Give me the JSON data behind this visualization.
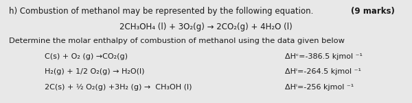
{
  "bg_color": "#e8e8e8",
  "text_color": "#1a1a1a",
  "title_line": "h) Combustion of methanol may be represented by the following equation.",
  "marks": "(9 marks)",
  "equation_main": "2CH₃OH₄ (l) + 3O₂(g) → 2CO₂(g) + 4H₂O (l)",
  "determine_line": "Determine the molar enthalpy of combustion of methanol using the data given below",
  "eq1_left": "C(s) + O₂ (g) →CO₂(g)",
  "eq1_right": "ΔHᶜ=-386.5 kjmol ⁻¹",
  "eq2_left": "H₂(g) + 1/2 O₂(g) → H₂O(l)",
  "eq2_right": "ΔHⁱ=-264.5 kjmol ⁻¹",
  "eq3_left": "2C(s) + ½ O₂(g) +3H₂ (g) →  CH₃OH (l)",
  "eq3_right": "ΔHⁱ=-256 kjmol ⁻¹",
  "fig_width": 6.0,
  "fig_height": 1.51,
  "dpi": 100
}
